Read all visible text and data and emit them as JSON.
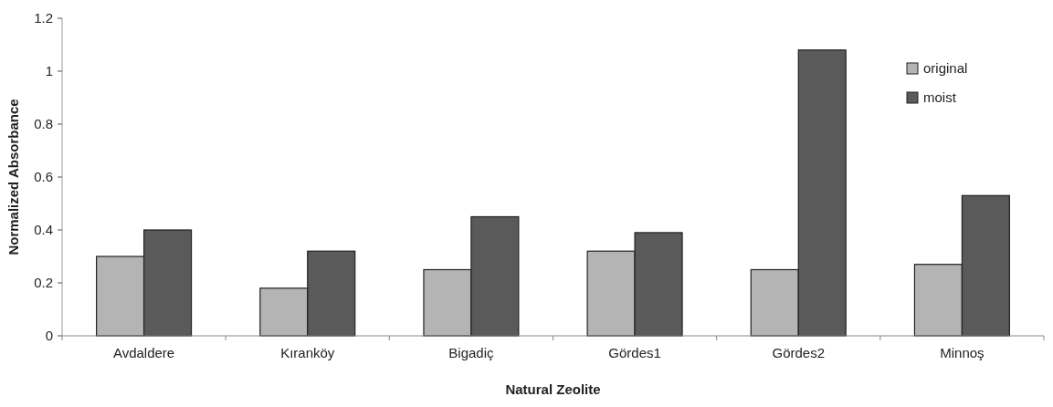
{
  "chart_data": {
    "type": "bar",
    "xlabel": "Natural Zeolite",
    "ylabel": "Normalized Absorbance",
    "categories": [
      "Avdaldere",
      "Kıranköy",
      "Bigadiç",
      "Gördes1",
      "Gördes2",
      "Minnoş"
    ],
    "series": [
      {
        "name": "original",
        "color": "#b4b4b4",
        "values": [
          0.3,
          0.18,
          0.25,
          0.32,
          0.25,
          0.27
        ]
      },
      {
        "name": "moist",
        "color": "#5a5a5a",
        "values": [
          0.4,
          0.32,
          0.45,
          0.39,
          1.08,
          0.53
        ]
      }
    ],
    "ylim": [
      0,
      1.2
    ],
    "yticks": [
      0,
      0.2,
      0.4,
      0.6,
      0.8,
      1,
      1.2
    ],
    "legend": "top right"
  }
}
